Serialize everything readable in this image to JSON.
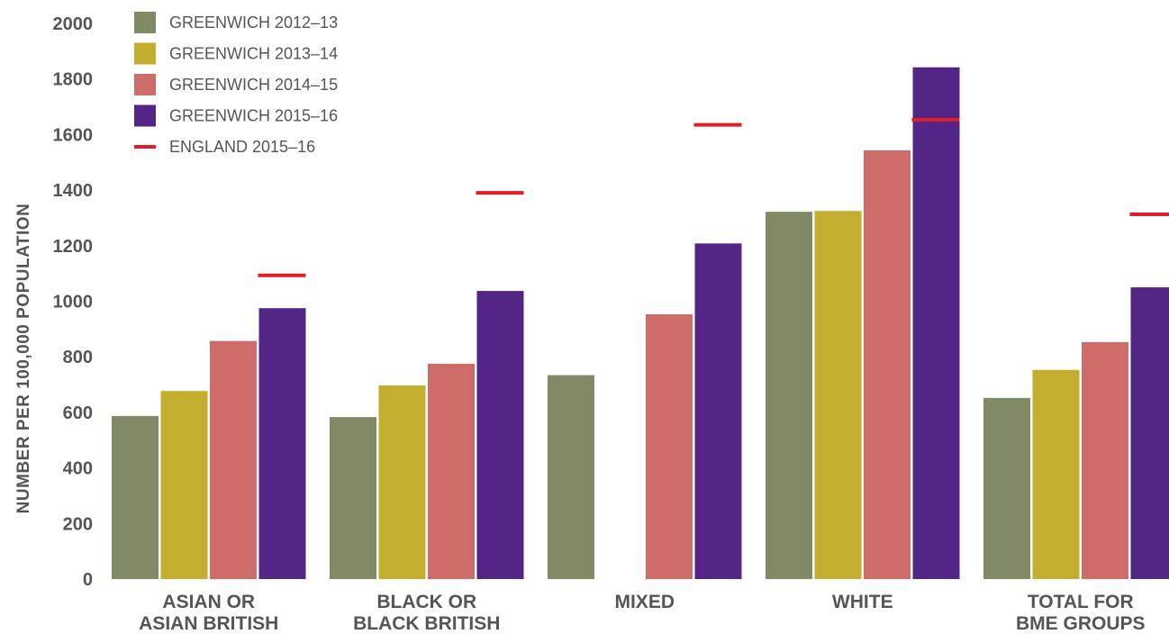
{
  "chart_data": {
    "type": "bar",
    "categories": [
      [
        "ASIAN OR",
        "ASIAN BRITISH"
      ],
      [
        "BLACK OR",
        "BLACK BRITISH"
      ],
      [
        "MIXED"
      ],
      [
        "WHITE"
      ],
      [
        "TOTAL FOR",
        "BME GROUPS"
      ]
    ],
    "series": [
      {
        "name": "GREENWICH 2012–13",
        "color": "#808a64",
        "values": [
          587,
          583,
          734,
          1322,
          652
        ]
      },
      {
        "name": "GREENWICH 2013–14",
        "color": "#c4ae2f",
        "values": [
          677,
          697,
          null,
          1325,
          753
        ]
      },
      {
        "name": "GREENWICH 2014–15",
        "color": "#cd6c69",
        "values": [
          857,
          775,
          953,
          1543,
          853
        ]
      },
      {
        "name": "GREENWICH 2015–16",
        "color": "#522586",
        "values": [
          975,
          1037,
          1208,
          1842,
          1050
        ]
      }
    ],
    "reference": {
      "name": "ENGLAND 2015–16",
      "color": "#e01e26",
      "values": [
        1093,
        1390,
        1635,
        1653,
        1313
      ]
    },
    "ylabel": "NUMBER PER 100,000 POPULATION",
    "yticks": [
      0,
      200,
      400,
      600,
      800,
      1000,
      1200,
      1400,
      1600,
      1800,
      2000
    ],
    "ylim": [
      0,
      2000
    ],
    "grid": false,
    "legend": "top-left"
  }
}
